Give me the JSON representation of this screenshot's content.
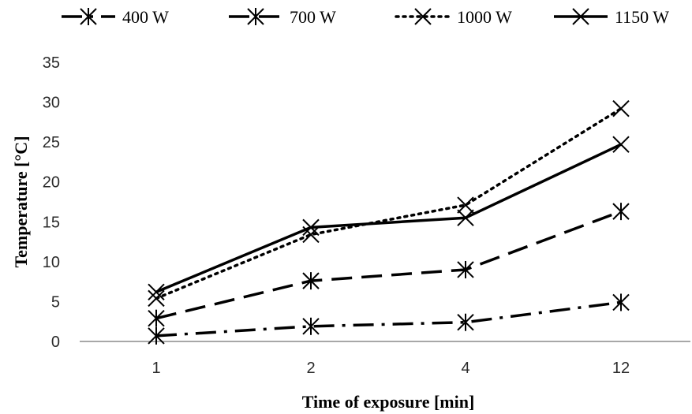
{
  "chart_data": {
    "type": "line",
    "categories": [
      "1",
      "2",
      "4",
      "12"
    ],
    "xlabel": "Time of exposure [min]",
    "ylabel": "Temperature [°C]",
    "ylim": [
      0,
      35
    ],
    "yticks": [
      0,
      5,
      10,
      15,
      20,
      25,
      30,
      35
    ],
    "grid": false,
    "legend_position": "top",
    "series": [
      {
        "name": "400 W",
        "values": [
          0.7,
          1.9,
          2.4,
          4.9
        ],
        "line_style": "dash-dot",
        "marker": "asterisk",
        "color": "#000000"
      },
      {
        "name": "700 W",
        "values": [
          2.9,
          7.6,
          9.0,
          16.3
        ],
        "line_style": "dashed",
        "marker": "asterisk",
        "color": "#000000"
      },
      {
        "name": "1000 W",
        "values": [
          5.4,
          13.4,
          17.1,
          29.2
        ],
        "line_style": "dotted",
        "marker": "x",
        "color": "#000000"
      },
      {
        "name": "1150 W",
        "values": [
          6.2,
          14.3,
          15.5,
          24.7
        ],
        "line_style": "solid",
        "marker": "x",
        "color": "#000000"
      }
    ]
  }
}
